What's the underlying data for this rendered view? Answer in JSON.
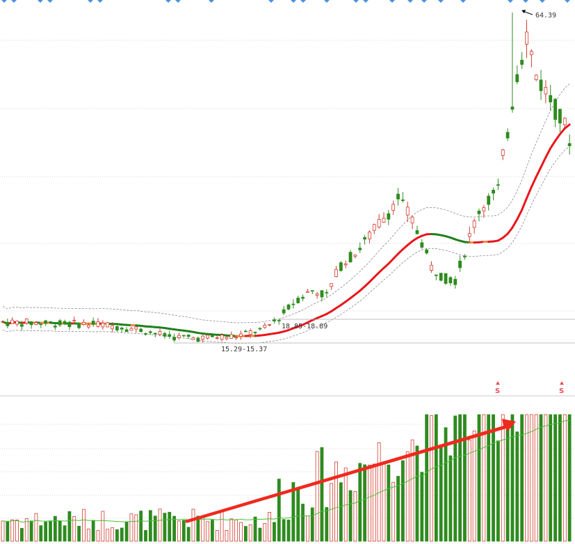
{
  "colors": {
    "up": "#d23a2c",
    "down": "#2e8b1f",
    "flat": "#f08a3a",
    "ma_up": "#e8151b",
    "ma_down": "#1f7f1f",
    "vol_ma": "#44c234",
    "signal": "#e8505b",
    "arrow": "#ee2a1e",
    "grid": "#d9d9d9",
    "band": "#777777"
  },
  "chart_data": {
    "type": "candlestick",
    "title": "",
    "price": {
      "high_label": "64.39",
      "ranges": [
        "18.85-18.89",
        "15.29-15.37"
      ],
      "open": [],
      "close": [],
      "high": [],
      "low": []
    },
    "volume": {
      "signals": [
        "S",
        "S"
      ]
    },
    "grid": true
  }
}
